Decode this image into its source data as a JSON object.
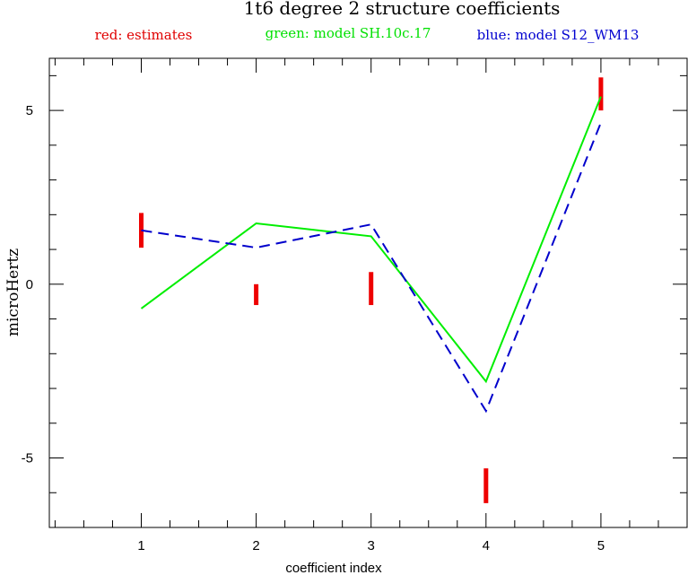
{
  "chart_data": {
    "type": "line",
    "title": "1t6 degree 2 structure coefficients",
    "xlabel": "coefficient index",
    "ylabel": "microHertz",
    "xlim": [
      0.2,
      5.75
    ],
    "ylim": [
      -7.0,
      6.5
    ],
    "x_ticks": [
      1,
      2,
      3,
      4,
      5
    ],
    "x_tick_labels": [
      "1",
      "2",
      "3",
      "4",
      "5"
    ],
    "y_ticks": [
      -5,
      0,
      5
    ],
    "y_tick_labels": [
      "-5",
      "0",
      "5"
    ],
    "x_minor_step": 0.25,
    "y_minor_step": 1,
    "grid": false,
    "legend_placement": "top",
    "legend": [
      {
        "text": "red: estimates",
        "color": "#e00000"
      },
      {
        "text": "green: model SH.10c.17",
        "color": "#00e000"
      },
      {
        "text": "blue: model S12_WM13",
        "color": "#0000d0"
      }
    ],
    "series": [
      {
        "name": "estimates",
        "style": "error-bar",
        "color": "#ee0000",
        "x": [
          1,
          2,
          3,
          4,
          5
        ],
        "low": [
          1.05,
          -0.6,
          -0.6,
          -6.3,
          5.0
        ],
        "high": [
          2.05,
          0.0,
          0.35,
          -5.3,
          5.95
        ]
      },
      {
        "name": "model SH.10c.17",
        "style": "solid",
        "color": "#00ee00",
        "x": [
          1,
          2,
          3,
          4,
          5
        ],
        "y": [
          -0.7,
          1.75,
          1.38,
          -2.8,
          5.4
        ]
      },
      {
        "name": "model S12_WM13",
        "style": "dashed",
        "color": "#0000cc",
        "x": [
          1,
          2,
          3,
          4,
          5
        ],
        "y": [
          1.55,
          1.05,
          1.72,
          -3.65,
          4.65
        ]
      }
    ]
  }
}
